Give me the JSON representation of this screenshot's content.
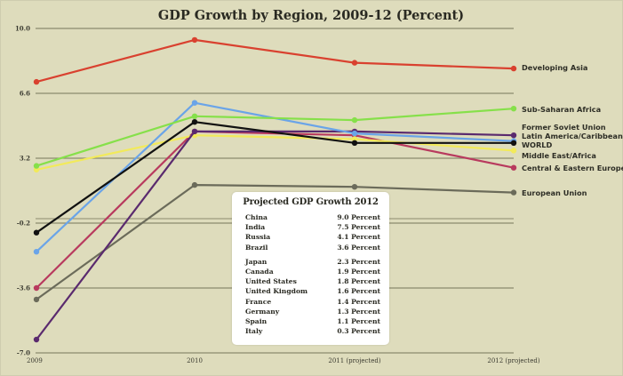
{
  "chart_data": {
    "type": "line",
    "title": "GDP Growth by Region, 2009-12 (Percent)",
    "xlabel": "",
    "ylabel": "",
    "categories": [
      "2009",
      "2010",
      "2011 (projected)",
      "2012 (projected)"
    ],
    "ylim": [
      -7.0,
      10.0
    ],
    "yticks": [
      "10.0",
      "6.6",
      "3.2",
      "-0.2",
      "-3.6",
      "-7.0"
    ],
    "ytick_values": [
      10.0,
      6.6,
      3.2,
      -0.2,
      -3.6,
      -7.0
    ],
    "grid": true,
    "legend_placement": "right-inline-labels",
    "series": [
      {
        "name": "Developing Asia",
        "color": "#d9412f",
        "values": [
          7.2,
          9.4,
          8.2,
          7.9
        ]
      },
      {
        "name": "Sub-Saharan Africa",
        "color": "#86e04a",
        "values": [
          2.8,
          5.4,
          5.2,
          5.8
        ]
      },
      {
        "name": "Former Soviet Union",
        "color": "#5a2a6e",
        "values": [
          -6.3,
          4.6,
          4.6,
          4.4
        ]
      },
      {
        "name": "Latin America/Caribbean",
        "color": "#6aa4e8",
        "values": [
          -1.7,
          6.1,
          4.5,
          4.1
        ]
      },
      {
        "name": "WORLD",
        "color": "#111111",
        "values": [
          -0.7,
          5.1,
          4.0,
          4.0
        ]
      },
      {
        "name": "Middle East/Africa",
        "color": "#f2ea5a",
        "values": [
          2.6,
          4.4,
          4.2,
          3.6
        ]
      },
      {
        "name": "Central & Eastern Europe",
        "color": "#b83a5e",
        "values": [
          -3.6,
          4.6,
          4.4,
          2.7
        ]
      },
      {
        "name": "European Union",
        "color": "#6b6b5a",
        "values": [
          -4.2,
          1.8,
          1.7,
          1.4
        ]
      }
    ],
    "annotations": [
      {
        "title": "Projected GDP Growth 2012",
        "groups": [
          [
            {
              "country": "China",
              "value": "9.0 Percent"
            },
            {
              "country": "India",
              "value": "7.5 Percent"
            },
            {
              "country": "Russia",
              "value": "4.1 Percent"
            },
            {
              "country": "Brazil",
              "value": "3.6 Percent"
            }
          ],
          [
            {
              "country": "Japan",
              "value": "2.3 Percent"
            },
            {
              "country": "Canada",
              "value": "1.9 Percent"
            },
            {
              "country": "United States",
              "value": "1.8 Percent"
            },
            {
              "country": "United Kingdom",
              "value": "1.6 Percent"
            },
            {
              "country": "France",
              "value": "1.4 Percent"
            },
            {
              "country": "Germany",
              "value": "1.3 Percent"
            },
            {
              "country": "Spain",
              "value": "1.1 Percent"
            },
            {
              "country": "Italy",
              "value": "0.3 Percent"
            }
          ]
        ]
      }
    ]
  },
  "colors": {
    "background": "#dedcbc",
    "gridline": "#8c8a6e",
    "inset_background": "#ffffff"
  }
}
